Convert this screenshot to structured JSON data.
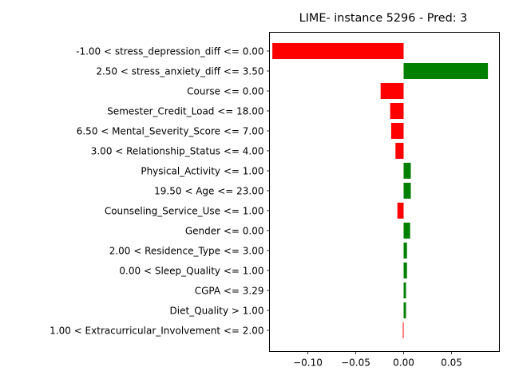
{
  "chart_data": {
    "type": "bar",
    "orientation": "horizontal",
    "title": "LIME- instance 5296 - Pred: 3",
    "xlabel": "",
    "ylabel": "",
    "xlim": [
      -0.14,
      0.1
    ],
    "xticks": [
      -0.1,
      -0.05,
      0.0,
      0.05
    ],
    "xtick_labels": [
      "−0.10",
      "−0.05",
      "0.00",
      "0.05"
    ],
    "grid": false,
    "colors": {
      "positive": "#008000",
      "negative": "#ff0000"
    },
    "categories": [
      "-1.00 < stress_depression_diff <= 0.00",
      "2.50 < stress_anxiety_diff <= 3.50",
      "Course <= 0.00",
      "Semester_Credit_Load <= 18.00",
      "6.50 < Mental_Severity_Score <= 7.00",
      "3.00 < Relationship_Status <= 4.00",
      "Physical_Activity <= 1.00",
      "19.50 < Age <= 23.00",
      "Counseling_Service_Use <= 1.00",
      "Gender <= 0.00",
      "2.00 < Residence_Type <= 3.00",
      "0.00 < Sleep_Quality <= 1.00",
      "CGPA <= 3.29",
      "Diet_Quality > 1.00",
      "1.00 < Extracurricular_Involvement <= 2.00"
    ],
    "values": [
      -0.137,
      0.088,
      -0.024,
      -0.014,
      -0.013,
      -0.0085,
      0.0075,
      0.0075,
      -0.0065,
      0.0068,
      0.0035,
      0.0035,
      0.0025,
      0.0025,
      -0.0008
    ]
  }
}
